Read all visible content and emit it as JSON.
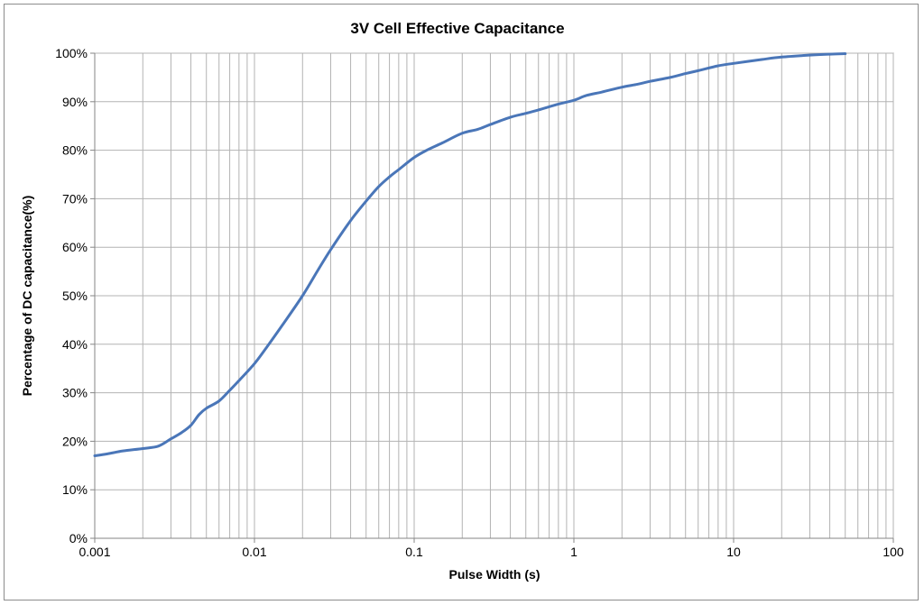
{
  "chart_data": {
    "type": "line",
    "title": "3V Cell Effective Capacitance",
    "xlabel": "Pulse Width (s)",
    "ylabel": "Percentage of DC capacitance(%)",
    "x_scale": "log",
    "xlim": [
      0.001,
      100
    ],
    "ylim": [
      0,
      100
    ],
    "x_ticks": [
      0.001,
      0.01,
      0.1,
      1,
      10,
      100
    ],
    "x_tick_labels": [
      "0.001",
      "0.01",
      "0.1",
      "1",
      "10",
      "100"
    ],
    "y_ticks": [
      0,
      10,
      20,
      30,
      40,
      50,
      60,
      70,
      80,
      90,
      100
    ],
    "y_tick_labels": [
      "0%",
      "10%",
      "20%",
      "30%",
      "40%",
      "50%",
      "60%",
      "70%",
      "80%",
      "90%",
      "100%"
    ],
    "grid": true,
    "legend": "none",
    "line_color": "#4a76b8",
    "series": [
      {
        "x": [
          0.001,
          0.0012,
          0.0015,
          0.002,
          0.0025,
          0.003,
          0.0035,
          0.004,
          0.0045,
          0.005,
          0.006,
          0.007,
          0.008,
          0.01,
          0.012,
          0.015,
          0.02,
          0.025,
          0.03,
          0.04,
          0.05,
          0.06,
          0.07,
          0.08,
          0.1,
          0.12,
          0.15,
          0.2,
          0.25,
          0.3,
          0.4,
          0.5,
          0.6,
          0.8,
          1,
          1.2,
          1.5,
          2,
          2.5,
          3,
          4,
          5,
          6,
          8,
          10,
          15,
          20,
          30,
          40,
          50
        ],
        "y": [
          17,
          17.4,
          18,
          18.5,
          19,
          20.5,
          21.8,
          23.3,
          25.5,
          26.8,
          28.3,
          30.5,
          32.5,
          36,
          39.5,
          44,
          50,
          55.3,
          59.5,
          65.5,
          69.5,
          72.5,
          74.5,
          76,
          78.5,
          80,
          81.5,
          83.5,
          84.3,
          85.3,
          86.8,
          87.6,
          88.3,
          89.5,
          90.3,
          91.3,
          92,
          93,
          93.6,
          94.2,
          95,
          95.8,
          96.4,
          97.4,
          97.9,
          98.7,
          99.2,
          99.6,
          99.8,
          99.9
        ]
      }
    ]
  }
}
